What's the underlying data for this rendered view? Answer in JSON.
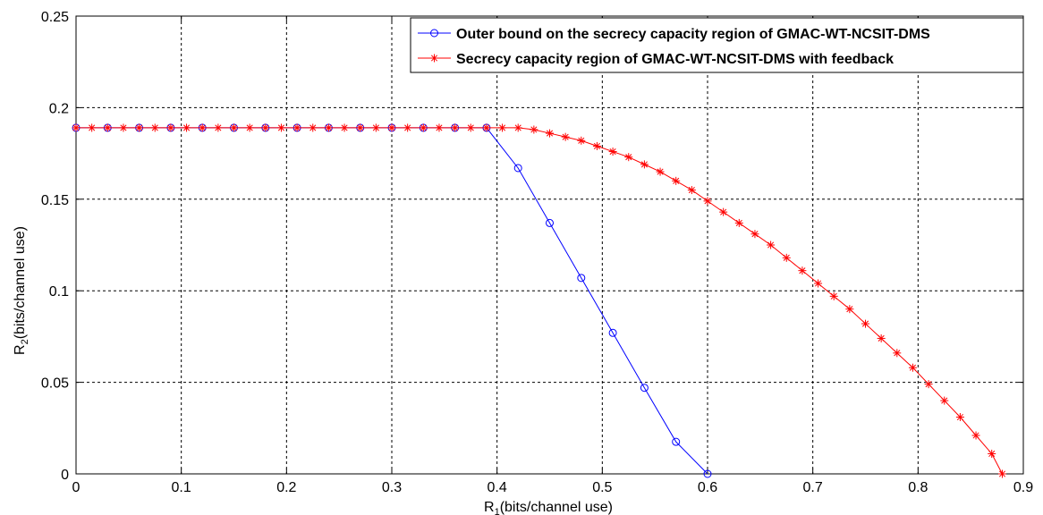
{
  "chart_data": {
    "type": "line",
    "xlabel": {
      "main": "R",
      "sub": "1",
      "suffix": "(bits/channel use)"
    },
    "ylabel": {
      "main": "R",
      "sub": "2",
      "suffix": "(bits/channel use)"
    },
    "xlim": [
      0,
      0.9
    ],
    "ylim": [
      0,
      0.25
    ],
    "xticks": [
      0,
      0.1,
      0.2,
      0.3,
      0.4,
      0.5,
      0.6,
      0.7,
      0.8,
      0.9
    ],
    "yticks": [
      0,
      0.05,
      0.1,
      0.15,
      0.2,
      0.25
    ],
    "grid": true,
    "legend_position": "top-right",
    "series": [
      {
        "name": "Outer bound on the secrecy capacity region of GMAC-WT-NCSIT-DMS",
        "color": "#0000ff",
        "marker": "circle",
        "x": [
          0,
          0.03,
          0.06,
          0.09,
          0.12,
          0.15,
          0.18,
          0.21,
          0.24,
          0.27,
          0.3,
          0.33,
          0.36,
          0.39,
          0.42,
          0.45,
          0.48,
          0.51,
          0.54,
          0.57,
          0.6
        ],
        "y": [
          0.189,
          0.189,
          0.189,
          0.189,
          0.189,
          0.189,
          0.189,
          0.189,
          0.189,
          0.189,
          0.189,
          0.189,
          0.189,
          0.189,
          0.167,
          0.137,
          0.107,
          0.077,
          0.047,
          0.0175,
          0
        ]
      },
      {
        "name": "Secrecy capacity region of GMAC-WT-NCSIT-DMS with feedback",
        "color": "#ff0000",
        "marker": "star",
        "x": [
          0,
          0.015,
          0.03,
          0.045,
          0.06,
          0.075,
          0.09,
          0.105,
          0.12,
          0.135,
          0.15,
          0.165,
          0.18,
          0.195,
          0.21,
          0.225,
          0.24,
          0.255,
          0.27,
          0.285,
          0.3,
          0.315,
          0.33,
          0.345,
          0.36,
          0.375,
          0.39,
          0.405,
          0.42,
          0.435,
          0.45,
          0.465,
          0.48,
          0.495,
          0.51,
          0.525,
          0.54,
          0.555,
          0.57,
          0.585,
          0.6,
          0.615,
          0.63,
          0.645,
          0.66,
          0.675,
          0.69,
          0.705,
          0.72,
          0.735,
          0.75,
          0.765,
          0.78,
          0.795,
          0.81,
          0.825,
          0.84,
          0.855,
          0.87,
          0.88
        ],
        "y": [
          0.189,
          0.189,
          0.189,
          0.189,
          0.189,
          0.189,
          0.189,
          0.189,
          0.189,
          0.189,
          0.189,
          0.189,
          0.189,
          0.189,
          0.189,
          0.189,
          0.189,
          0.189,
          0.189,
          0.189,
          0.189,
          0.189,
          0.189,
          0.189,
          0.189,
          0.189,
          0.189,
          0.189,
          0.189,
          0.188,
          0.186,
          0.184,
          0.182,
          0.179,
          0.176,
          0.173,
          0.169,
          0.165,
          0.16,
          0.155,
          0.149,
          0.143,
          0.137,
          0.131,
          0.125,
          0.118,
          0.111,
          0.104,
          0.097,
          0.09,
          0.082,
          0.074,
          0.066,
          0.058,
          0.049,
          0.04,
          0.031,
          0.021,
          0.011,
          0
        ]
      }
    ]
  }
}
